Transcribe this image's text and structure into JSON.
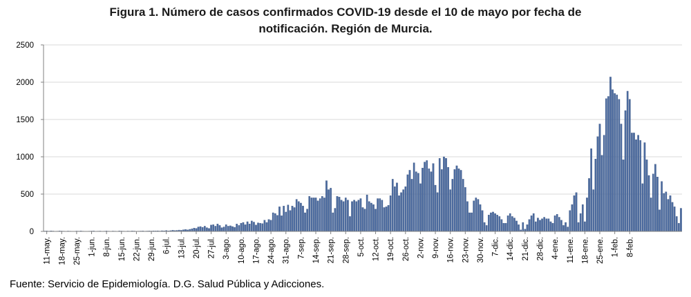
{
  "title_line1": "Figura 1. Número de casos confirmados COVID-19 desde el 10 de mayo por fecha de",
  "title_line2": "notificación. Región de Murcia.",
  "source": "Fuente: Servicio de Epidemiología. D.G. Salud Pública y Adicciones.",
  "colors": {
    "bar_fill": "#4d6ca0",
    "bar_stroke": "#2f4a78",
    "axis": "#808080",
    "grid": "#d9d9d9"
  },
  "chart_data": {
    "type": "bar",
    "xlabel": "",
    "ylabel": "",
    "ylim": [
      0,
      2500
    ],
    "yticks": [
      0,
      500,
      1000,
      1500,
      2000,
      2500
    ],
    "grid": "horizontal",
    "start_date": "2020-05-10",
    "tick_labels": [
      {
        "label": "11-may.",
        "index": 1
      },
      {
        "label": "18-may.",
        "index": 8
      },
      {
        "label": "25-may.",
        "index": 15
      },
      {
        "label": "1-jun.",
        "index": 22
      },
      {
        "label": "8-jun.",
        "index": 29
      },
      {
        "label": "15-jun.",
        "index": 36
      },
      {
        "label": "22-jun.",
        "index": 43
      },
      {
        "label": "29-jun.",
        "index": 50
      },
      {
        "label": "6-jul.",
        "index": 57
      },
      {
        "label": "13-jul.",
        "index": 64
      },
      {
        "label": "20-jul.",
        "index": 71
      },
      {
        "label": "27-jul.",
        "index": 78
      },
      {
        "label": "3-ago.",
        "index": 85
      },
      {
        "label": "10-ago.",
        "index": 92
      },
      {
        "label": "17-ago.",
        "index": 99
      },
      {
        "label": "24-ago.",
        "index": 106
      },
      {
        "label": "31-ago.",
        "index": 113
      },
      {
        "label": "7-sep.",
        "index": 120
      },
      {
        "label": "14-sep.",
        "index": 127
      },
      {
        "label": "21-sep.",
        "index": 134
      },
      {
        "label": "28-sep.",
        "index": 141
      },
      {
        "label": "5-oct.",
        "index": 148
      },
      {
        "label": "12-oct.",
        "index": 155
      },
      {
        "label": "19-oct.",
        "index": 162
      },
      {
        "label": "26-oct.",
        "index": 169
      },
      {
        "label": "2-nov.",
        "index": 176
      },
      {
        "label": "9-nov.",
        "index": 183
      },
      {
        "label": "16-nov.",
        "index": 190
      },
      {
        "label": "23-nov.",
        "index": 197
      },
      {
        "label": "30-nov.",
        "index": 204
      },
      {
        "label": "7-dic.",
        "index": 211
      },
      {
        "label": "14-dic.",
        "index": 218
      },
      {
        "label": "21-dic.",
        "index": 225
      },
      {
        "label": "28-dic.",
        "index": 232
      },
      {
        "label": "4-ene.",
        "index": 239
      },
      {
        "label": "11-ene.",
        "index": 246
      },
      {
        "label": "18-ene.",
        "index": 253
      },
      {
        "label": "25-ene.",
        "index": 260
      },
      {
        "label": "1-feb.",
        "index": 267
      },
      {
        "label": "8-feb.",
        "index": 274
      }
    ],
    "values": [
      5,
      6,
      4,
      7,
      5,
      3,
      4,
      6,
      5,
      4,
      3,
      5,
      4,
      2,
      3,
      5,
      4,
      6,
      4,
      3,
      3,
      4,
      5,
      6,
      3,
      4,
      5,
      3,
      4,
      6,
      4,
      3,
      5,
      4,
      3,
      6,
      5,
      4,
      3,
      5,
      4,
      6,
      5,
      3,
      4,
      5,
      6,
      4,
      5,
      6,
      5,
      7,
      6,
      8,
      5,
      9,
      8,
      12,
      7,
      10,
      15,
      12,
      14,
      18,
      15,
      22,
      25,
      20,
      28,
      35,
      45,
      40,
      60,
      65,
      55,
      70,
      50,
      40,
      85,
      90,
      70,
      100,
      80,
      50,
      60,
      90,
      70,
      75,
      65,
      55,
      100,
      80,
      110,
      120,
      90,
      130,
      100,
      140,
      125,
      85,
      115,
      110,
      105,
      150,
      120,
      160,
      150,
      250,
      240,
      215,
      330,
      210,
      340,
      260,
      355,
      280,
      340,
      320,
      430,
      400,
      380,
      340,
      250,
      300,
      470,
      450,
      450,
      450,
      410,
      440,
      470,
      450,
      680,
      560,
      580,
      250,
      310,
      470,
      460,
      420,
      400,
      450,
      420,
      200,
      400,
      420,
      400,
      420,
      440,
      320,
      300,
      490,
      400,
      380,
      360,
      300,
      440,
      440,
      420,
      320,
      330,
      350,
      480,
      700,
      600,
      650,
      480,
      520,
      560,
      600,
      760,
      820,
      700,
      920,
      800,
      780,
      640,
      850,
      930,
      950,
      840,
      800,
      910,
      620,
      520,
      980,
      830,
      1000,
      980,
      860,
      560,
      700,
      830,
      880,
      840,
      820,
      700,
      590,
      400,
      250,
      250,
      410,
      450,
      430,
      360,
      280,
      120,
      80,
      220,
      250,
      260,
      240,
      220,
      200,
      160,
      110,
      110,
      210,
      240,
      200,
      180,
      140,
      90,
      20,
      120,
      30,
      90,
      160,
      210,
      240,
      130,
      180,
      150,
      170,
      190,
      170,
      170,
      130,
      110,
      210,
      230,
      190,
      150,
      80,
      120,
      60,
      280,
      360,
      480,
      520,
      120,
      240,
      360,
      130,
      450,
      710,
      1110,
      560,
      970,
      1270,
      1440,
      1020,
      1290,
      1780,
      1810,
      2070,
      1900,
      1850,
      1830,
      1770,
      1440,
      960,
      1620,
      1880,
      1770,
      1320,
      1320,
      1230,
      1290,
      1220,
      640,
      1190,
      960,
      750,
      450,
      770,
      900,
      730,
      290,
      670,
      510,
      530,
      430,
      480,
      390,
      330,
      200,
      110,
      310
    ]
  }
}
